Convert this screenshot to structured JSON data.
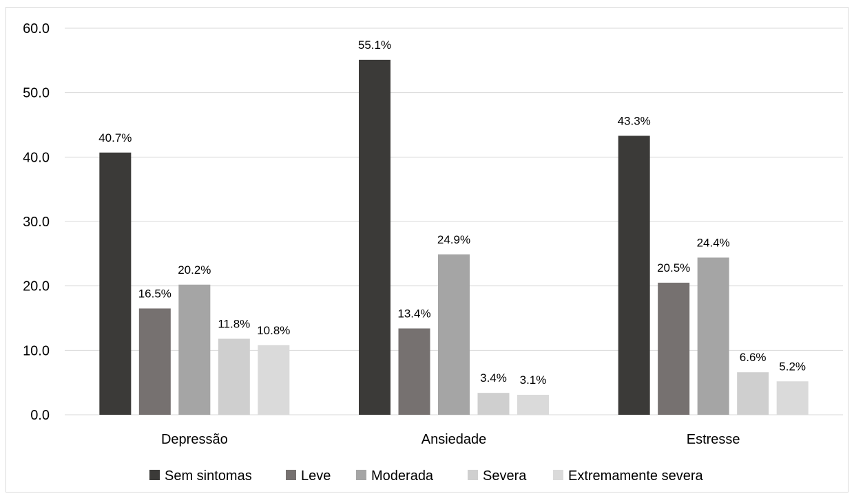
{
  "chart_data": {
    "type": "bar",
    "title": "",
    "xlabel": "",
    "ylabel": "",
    "ylim": [
      0,
      60
    ],
    "yticks": [
      "0.0",
      "10.0",
      "20.0",
      "30.0",
      "40.0",
      "50.0",
      "60.0"
    ],
    "grid": true,
    "legend_position": "bottom",
    "categories": [
      "Depressão",
      "Ansiedade",
      "Estresse"
    ],
    "series": [
      {
        "name": "Sem sintomas",
        "color": "#3b3a38",
        "values": [
          40.7,
          55.1,
          43.3
        ],
        "labels": [
          "40.7%",
          "55.1%",
          "43.3%"
        ]
      },
      {
        "name": "Leve",
        "color": "#767170",
        "values": [
          16.5,
          13.4,
          20.5
        ],
        "labels": [
          "16.5%",
          "13.4%",
          "20.5%"
        ]
      },
      {
        "name": "Moderada",
        "color": "#a5a5a5",
        "values": [
          20.2,
          24.9,
          24.4
        ],
        "labels": [
          "20.2%",
          "24.9%",
          "24.4%"
        ]
      },
      {
        "name": "Severa",
        "color": "#cfcfcf",
        "values": [
          11.8,
          3.4,
          6.6
        ],
        "labels": [
          "11.8%",
          "3.4%",
          "6.6%"
        ]
      },
      {
        "name": "Extremamente severa",
        "color": "#dadada",
        "values": [
          10.8,
          3.1,
          5.2
        ],
        "labels": [
          "10.8%",
          "3.1%",
          "5.2%"
        ]
      }
    ]
  }
}
